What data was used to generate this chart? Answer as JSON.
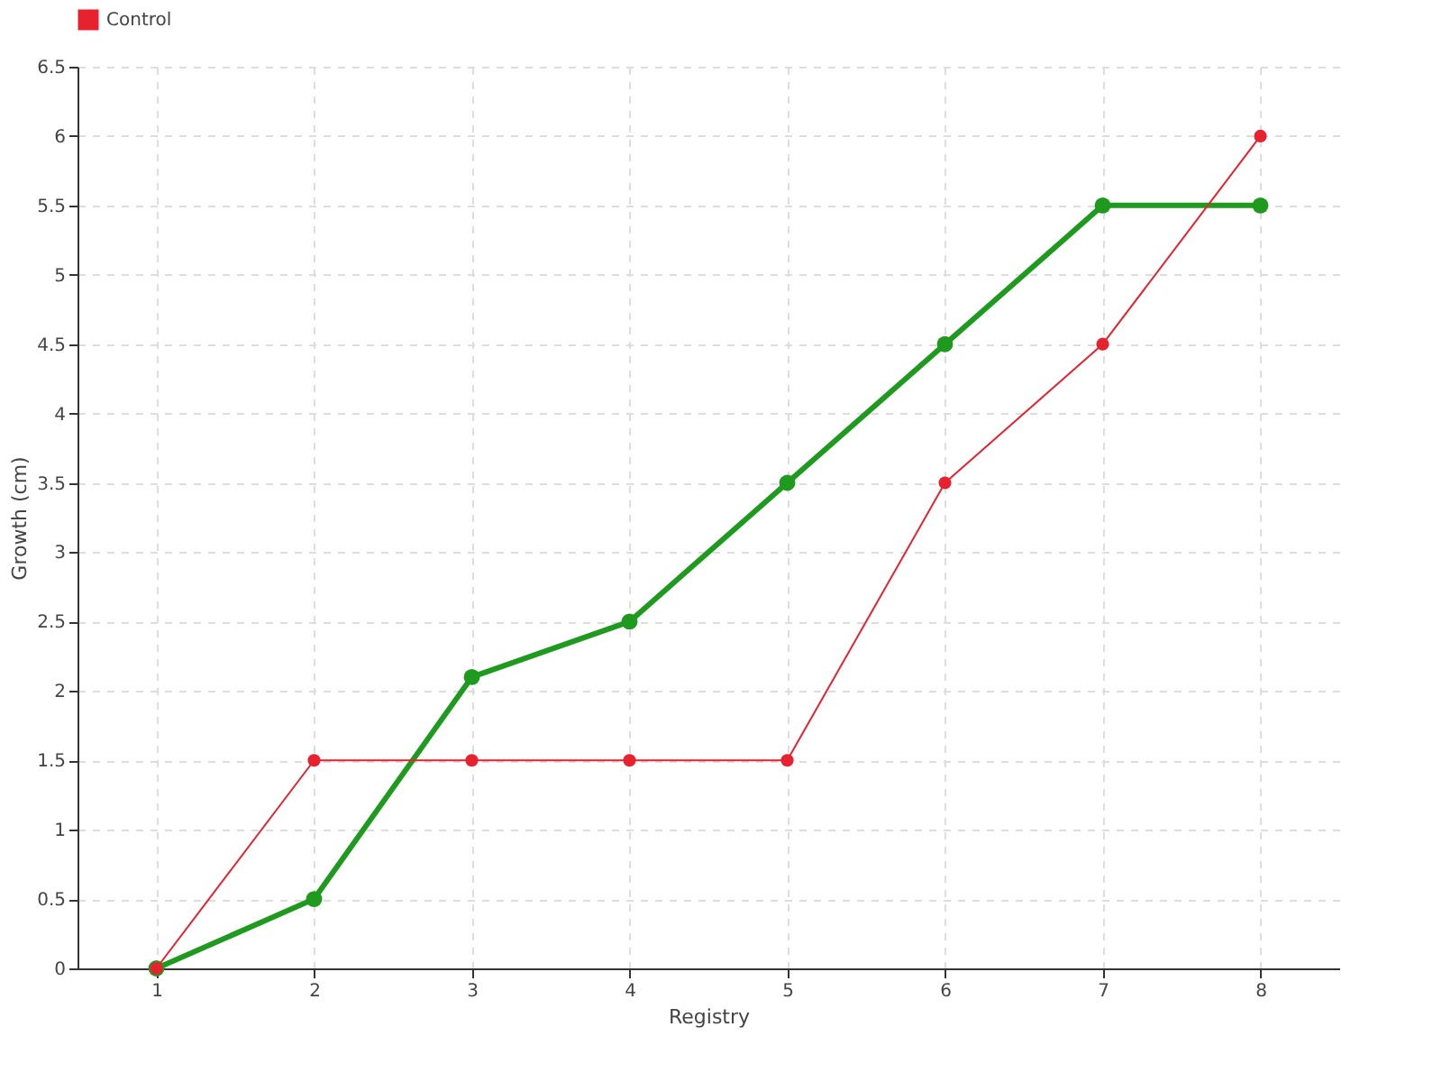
{
  "chart_data": {
    "type": "line",
    "xlabel": "Registry",
    "ylabel": "Growth (cm)",
    "categories": [
      "1",
      "2",
      "3",
      "4",
      "5",
      "6",
      "7",
      "8"
    ],
    "series": [
      {
        "color": "#1e9a1e",
        "values": [
          0,
          0.5,
          2.1,
          2.5,
          3.5,
          4.5,
          5.5,
          5.5
        ]
      },
      {
        "name": "Control",
        "color": "#e8212e",
        "values": [
          0,
          1.5,
          1.5,
          1.5,
          1.5,
          3.5,
          4.5,
          6
        ]
      }
    ],
    "ylim": [
      0,
      6.5
    ],
    "yticks": [
      0,
      0.5,
      1,
      1.5,
      2,
      2.5,
      3,
      3.5,
      4,
      4.5,
      5,
      5.5,
      6,
      6.5
    ],
    "grid": true,
    "legend": "top",
    "marker": "circle",
    "line_style": "solid"
  }
}
